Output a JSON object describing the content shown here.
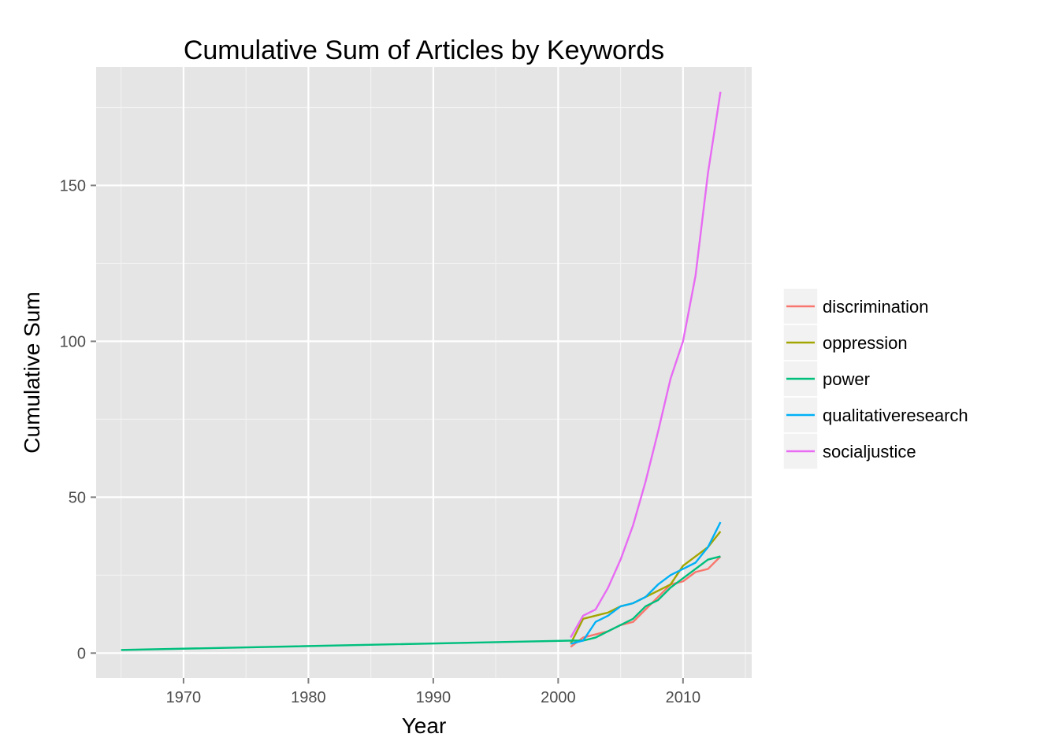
{
  "chart_data": {
    "type": "line",
    "title": "Cumulative Sum of Articles by Keywords",
    "xlabel": "Year",
    "ylabel": "Cumulative Sum",
    "xlim": [
      1963,
      2015.5
    ],
    "ylim": [
      -8,
      188
    ],
    "x_ticks": [
      1970,
      1980,
      1990,
      2000,
      2010
    ],
    "x_tick_labels": [
      "1970",
      "1980",
      "1990",
      "2000",
      "2010"
    ],
    "x_minor_ticks": [
      1965,
      1975,
      1985,
      1995,
      2005,
      2015
    ],
    "y_ticks": [
      0,
      50,
      100,
      150
    ],
    "y_tick_labels": [
      "0",
      "50",
      "100",
      "150"
    ],
    "y_minor_ticks": [
      25,
      75,
      125,
      175
    ],
    "grid": true,
    "legend_position": "right",
    "colors": {
      "panel": "#e5e5e5",
      "grid_major": "#ffffff",
      "grid_minor": "#f2f2f2",
      "tick": "#7f7f7f"
    },
    "series": [
      {
        "name": "discrimination",
        "color": "#f8766d",
        "x": [
          2001,
          2002,
          2003,
          2004,
          2005,
          2006,
          2007,
          2008,
          2009,
          2010,
          2011,
          2012,
          2013
        ],
        "y": [
          2,
          5,
          6,
          7,
          9,
          10,
          14,
          18,
          22,
          23,
          26,
          27,
          31
        ]
      },
      {
        "name": "oppression",
        "color": "#a3a500",
        "x": [
          2001,
          2002,
          2003,
          2004,
          2005,
          2006,
          2007,
          2008,
          2009,
          2010,
          2011,
          2012,
          2013
        ],
        "y": [
          3,
          11,
          12,
          13,
          15,
          16,
          18,
          20,
          22,
          28,
          31,
          34,
          39
        ]
      },
      {
        "name": "power",
        "color": "#00bf7d",
        "x": [
          1965,
          2001,
          2002,
          2003,
          2004,
          2005,
          2006,
          2007,
          2008,
          2009,
          2010,
          2011,
          2012,
          2013
        ],
        "y": [
          1,
          4,
          4,
          5,
          7,
          9,
          11,
          15,
          17,
          21,
          24,
          27,
          30,
          31
        ]
      },
      {
        "name": "qualitativeresearch",
        "color": "#00b0f6",
        "x": [
          2001,
          2002,
          2003,
          2004,
          2005,
          2006,
          2007,
          2008,
          2009,
          2010,
          2011,
          2012,
          2013
        ],
        "y": [
          3,
          4,
          10,
          12,
          15,
          16,
          18,
          22,
          25,
          27,
          29,
          34,
          42
        ]
      },
      {
        "name": "socialjustice",
        "color": "#e76bf3",
        "x": [
          2001,
          2002,
          2003,
          2004,
          2005,
          2006,
          2007,
          2008,
          2009,
          2010,
          2011,
          2012,
          2013
        ],
        "y": [
          5,
          12,
          14,
          21,
          30,
          41,
          55,
          71,
          88,
          100,
          121,
          154,
          180
        ]
      }
    ]
  }
}
